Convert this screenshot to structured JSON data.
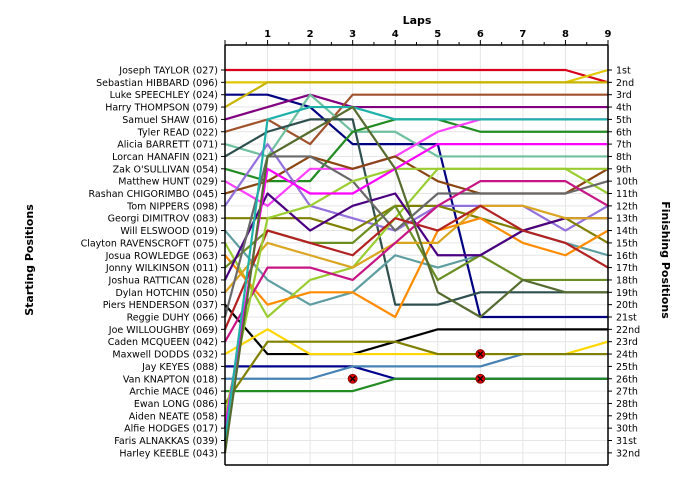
{
  "chart_data": {
    "type": "line",
    "title": "Laps",
    "xlabel": "Laps",
    "ylabel_left": "Starting Positions",
    "ylabel_right": "Finishing Positions",
    "laps": [
      1,
      2,
      3,
      4,
      5,
      6,
      7,
      8,
      9
    ],
    "position_count": 32,
    "starting_labels": [
      "Joseph TAYLOR (027)",
      "Sebastian HIBBARD (096)",
      "Luke SPEECHLEY (024)",
      "Harry THOMPSON (079)",
      "Samuel SHAW (016)",
      "Tyler READ (022)",
      "Alicia BARRETT (071)",
      "Lorcan HANAFIN (021)",
      "Zak O'SULLIVAN (054)",
      "Matthew HUNT (029)",
      "Rashan CHIGORIMBO (045)",
      "Tom NIPPERS (098)",
      "Georgi DIMITROV (083)",
      "Will ELSWOOD (019)",
      "Clayton RAVENSCROFT (075)",
      "Josua ROWLEDGE (063)",
      "Jonny WILKINSON (011)",
      "Joshua RATTICAN (028)",
      "Dylan HOTCHIN (050)",
      "Piers HENDERSON (037)",
      "Reggie DUHY (066)",
      "Joe WILLOUGHBY (069)",
      "Caden MCQUEEN (042)",
      "Maxwell DODDS (032)",
      "Jay KEYES (088)",
      "Van KNAPTON (018)",
      "Archie MACE (046)",
      "Ewan LONG (086)",
      "Aiden NEATE (058)",
      "Alfie HODGES (017)",
      "Faris ALNAKKAS (039)",
      "Harley KEEBLE (043)"
    ],
    "finishing_labels": [
      "1st",
      "2nd",
      "3rd",
      "4th",
      "5th",
      "6th",
      "7th",
      "8th",
      "9th",
      "10th",
      "11th",
      "12th",
      "13th",
      "14th",
      "15th",
      "16th",
      "17th",
      "18th",
      "19th",
      "20th",
      "21st",
      "22nd",
      "23rd",
      "24th",
      "25th",
      "26th",
      "27th",
      "28th",
      "29th",
      "30th",
      "31st",
      "32nd"
    ],
    "series": [
      {
        "color": "#d9001b",
        "positions": [
          1,
          1,
          1,
          1,
          1,
          1,
          1,
          1,
          1,
          2
        ]
      },
      {
        "color": "#e0c800",
        "positions": [
          2,
          2,
          2,
          2,
          2,
          2,
          2,
          2,
          2,
          1
        ]
      },
      {
        "color": "#000080",
        "positions": [
          3,
          3,
          4,
          7,
          7,
          7,
          21,
          21,
          21,
          21
        ]
      },
      {
        "color": "#c8b400",
        "positions": [
          4,
          2,
          2,
          2,
          2,
          2,
          2,
          2,
          2,
          2
        ]
      },
      {
        "color": "#800080",
        "positions": [
          5,
          4,
          3,
          4,
          4,
          4,
          4,
          4,
          4,
          4
        ]
      },
      {
        "color": "#a0522d",
        "positions": [
          6,
          5,
          7,
          3,
          3,
          3,
          3,
          3,
          3,
          3
        ]
      },
      {
        "color": "#70c0a0",
        "positions": [
          7,
          8,
          3,
          6,
          6,
          8,
          8,
          8,
          8,
          8
        ]
      },
      {
        "color": "#2f4f4f",
        "positions": [
          8,
          6,
          5,
          5,
          20,
          20,
          19,
          19,
          19,
          19
        ]
      },
      {
        "color": "#228b22",
        "positions": [
          9,
          10,
          10,
          6,
          5,
          5,
          6,
          6,
          6,
          6
        ]
      },
      {
        "color": "#ff40ff",
        "positions": [
          10,
          12,
          9,
          9,
          8,
          6,
          5,
          5,
          5,
          5
        ]
      },
      {
        "color": "#8b4513",
        "positions": [
          11,
          10,
          8,
          9,
          8,
          10,
          11,
          11,
          11,
          9
        ]
      },
      {
        "color": "#9370db",
        "positions": [
          12,
          7,
          12,
          13,
          14,
          12,
          12,
          12,
          14,
          12
        ]
      },
      {
        "color": "#808000",
        "positions": [
          13,
          13,
          13,
          14,
          12,
          12,
          13,
          14,
          13,
          15
        ]
      },
      {
        "color": "#5f9ea0",
        "positions": [
          14,
          18,
          20,
          19,
          16,
          17,
          16,
          14,
          15,
          16
        ]
      },
      {
        "color": "#9acd32",
        "positions": [
          15,
          21,
          18,
          17,
          13,
          9,
          9,
          9,
          9,
          11
        ]
      },
      {
        "color": "#ff8c00",
        "positions": [
          16,
          20,
          19,
          19,
          21,
          14,
          13,
          15,
          16,
          14
        ]
      },
      {
        "color": "#6b8e23",
        "positions": [
          17,
          14,
          15,
          15,
          12,
          18,
          16,
          18,
          18,
          18
        ]
      },
      {
        "color": "#4b0082",
        "positions": [
          18,
          11,
          14,
          12,
          11,
          16,
          16,
          14,
          13,
          13
        ]
      },
      {
        "color": "#daa520",
        "positions": [
          19,
          15,
          16,
          17,
          15,
          15,
          12,
          12,
          13,
          13
        ]
      },
      {
        "color": "#000000",
        "positions": [
          20,
          24,
          24,
          24,
          23,
          22,
          22,
          22,
          22,
          22
        ]
      },
      {
        "color": "#696969",
        "positions": [
          21,
          8,
          8,
          10,
          14,
          11,
          11,
          11,
          11,
          10
        ]
      },
      {
        "color": "#b22222",
        "positions": [
          22,
          14,
          15,
          16,
          13,
          14,
          12,
          14,
          15,
          17
        ]
      },
      {
        "color": "#c71585",
        "positions": [
          23,
          17,
          17,
          18,
          15,
          12,
          10,
          10,
          10,
          12
        ]
      },
      {
        "color": "#ffd700",
        "positions": [
          24,
          22,
          24,
          24,
          24,
          24,
          24,
          24,
          24,
          23
        ]
      },
      {
        "color": "#00008b",
        "positions": [
          25,
          25,
          25,
          25,
          26,
          26,
          26,
          26,
          26,
          26
        ]
      },
      {
        "color": "#4682b4",
        "positions": [
          26,
          26,
          26,
          25,
          25,
          25,
          25,
          24,
          24,
          24
        ]
      },
      {
        "color": "#228b22",
        "positions": [
          27,
          27,
          27,
          27,
          26,
          26,
          26,
          26,
          26,
          26
        ]
      },
      {
        "color": "#808000",
        "positions": [
          28,
          23,
          23,
          23,
          23,
          24,
          24,
          24,
          24,
          24
        ]
      },
      {
        "color": "#9acd32",
        "positions": [
          29,
          13,
          12,
          10,
          9,
          9,
          9,
          9,
          9,
          9
        ]
      },
      {
        "color": "#ff00ff",
        "positions": [
          30,
          9,
          11,
          11,
          9,
          7,
          7,
          7,
          7,
          7
        ]
      },
      {
        "color": "#20b2aa",
        "positions": [
          31,
          5,
          4,
          4,
          5,
          5,
          5,
          5,
          5,
          5
        ]
      },
      {
        "color": "#556b2f",
        "positions": [
          32,
          8,
          6,
          4,
          9,
          19,
          21,
          18,
          19,
          19
        ]
      }
    ],
    "retirements": [
      {
        "lap": 3,
        "position": 26
      },
      {
        "lap": 6,
        "position": 24
      },
      {
        "lap": 6,
        "position": 26
      }
    ]
  }
}
